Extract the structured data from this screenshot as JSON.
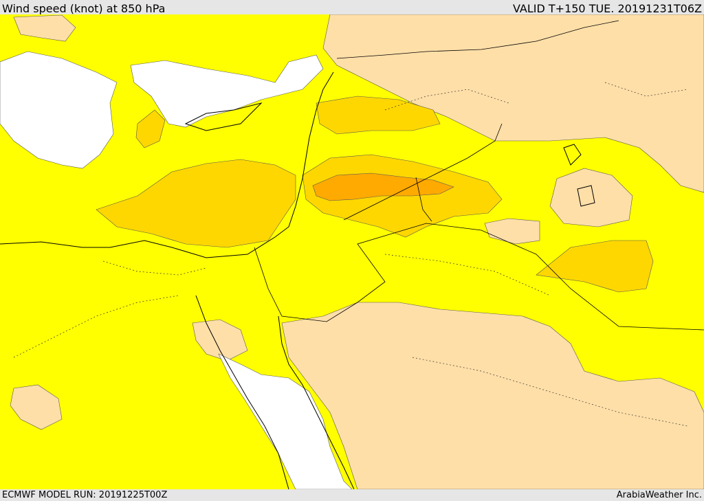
{
  "header": {
    "title": "Wind speed (knot) at 850 hPa",
    "valid": "VALID T+150 TUE. 20191231T06Z"
  },
  "footer": {
    "model_run": "ECMWF MODEL RUN: 20191225T00Z",
    "brand": "ArabiaWeather Inc."
  },
  "colors": {
    "calm": "#ffffff",
    "yellow": "#ffff00",
    "tan": "#ffdfa8",
    "gold": "#ffd700",
    "orange": "#ffaa00",
    "panel": "#e6e6e6"
  }
}
